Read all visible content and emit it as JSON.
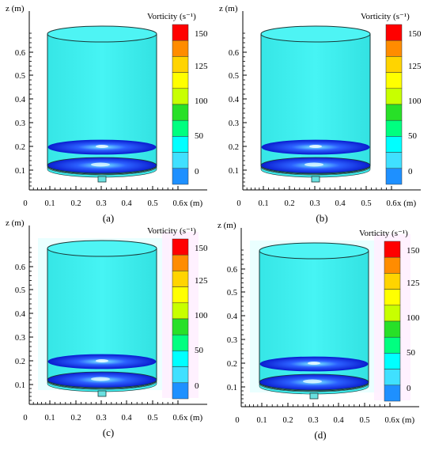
{
  "panels": [
    {
      "id": "a",
      "caption": "(a)",
      "glow": false
    },
    {
      "id": "b",
      "caption": "(b)",
      "glow": false
    },
    {
      "id": "c",
      "caption": "(c)",
      "glow": true
    },
    {
      "id": "d",
      "caption": "(d)",
      "glow": true
    }
  ],
  "axes": {
    "z_label": "z (m)",
    "x_label": "x (m)",
    "z_ticks": [
      "0.1",
      "0.2",
      "0.3",
      "0.4",
      "0.5",
      "0.6"
    ],
    "x_ticks": [
      "0",
      "0.1",
      "0.2",
      "0.3",
      "0.4",
      "0.5",
      "0.6"
    ]
  },
  "colorbar": {
    "title": "Vorticity (s⁻¹)",
    "labels": [
      "150",
      "125",
      "100",
      "50",
      "0"
    ],
    "colors": [
      "#ff0000",
      "#ff8c00",
      "#ffd400",
      "#ffff00",
      "#c8ff00",
      "#28e028",
      "#00ff80",
      "#00ffff",
      "#40e0ff",
      "#1e90ff"
    ]
  },
  "colors": {
    "tank_body": "#40f0f0",
    "tank_outline": "#1a3a3a",
    "disk_edge": "#0a1fd0",
    "disk_center": "#8fd8ff"
  }
}
